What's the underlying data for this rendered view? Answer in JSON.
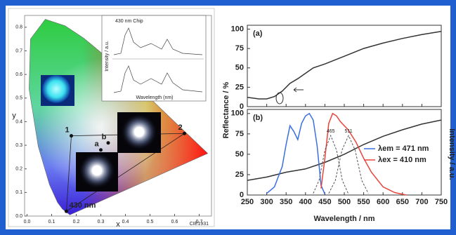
{
  "chart_data": [
    {
      "type": "chromaticity",
      "xlabel": "x",
      "ylabel": "y",
      "xlim": [
        -0.01,
        0.75
      ],
      "ylim": [
        0,
        0.85
      ],
      "xticks": [
        {
          "value": 0,
          "label": "0.0"
        },
        0.1,
        0.2,
        0.3,
        0.4,
        0.5,
        0.6,
        0.7
      ],
      "yticks": [
        {
          "value": 0,
          "label": "0.0"
        },
        0.1,
        0.2,
        0.3,
        0.4,
        0.5,
        0.6,
        0.7,
        0.8
      ],
      "points": [
        {
          "label": "1",
          "x": 0.18,
          "y": 0.34
        },
        {
          "label": "2",
          "x": 0.64,
          "y": 0.35
        },
        {
          "label": "a",
          "x": 0.3,
          "y": 0.28
        },
        {
          "label": "b",
          "x": 0.33,
          "y": 0.31
        },
        {
          "label": "430 nm",
          "x": 0.16,
          "y": 0.02
        }
      ],
      "footnote": "CIE1931",
      "inset": {
        "title": "430 nm Chip",
        "xlabel": "Wavelength (nm)",
        "ylabel": "Intensity / a.u."
      }
    },
    {
      "type": "line",
      "panel_label": "(a)",
      "ylabel": "Reflectance / %",
      "xlim": [
        250,
        750
      ],
      "ylim": [
        0,
        105
      ],
      "yticks": [
        0,
        25,
        50,
        75,
        100
      ],
      "series": [
        {
          "color": "#333333",
          "x": [
            250,
            280,
            300,
            320,
            340,
            360,
            380,
            400,
            420,
            450,
            500,
            550,
            600,
            650,
            700,
            750
          ],
          "values": [
            12,
            10,
            10,
            13,
            20,
            30,
            36,
            43,
            50,
            55,
            65,
            75,
            82,
            88,
            93,
            97
          ]
        }
      ]
    },
    {
      "type": "line",
      "panel_label": "(b)",
      "xlabel": "Wavelength / nm",
      "y2label": "Intensity / a.u.",
      "xlim": [
        250,
        750
      ],
      "ylim": [
        0,
        105
      ],
      "yticks": [
        0,
        25,
        50,
        75,
        100
      ],
      "xticks": [
        250,
        300,
        350,
        400,
        450,
        500,
        550,
        600,
        650,
        700,
        750
      ],
      "legend": "right",
      "series": [
        {
          "color": "#333333",
          "x": [
            250,
            300,
            350,
            400,
            450,
            500,
            550,
            600,
            650,
            700,
            750
          ],
          "values": [
            18,
            22,
            28,
            32,
            40,
            50,
            62,
            72,
            80,
            87,
            92
          ]
        },
        {
          "name": "λem = 471 nm",
          "color": "#3a6fe0",
          "x": [
            300,
            320,
            340,
            350,
            360,
            370,
            380,
            390,
            400,
            410,
            420,
            430,
            440,
            450
          ],
          "values": [
            2,
            10,
            35,
            62,
            85,
            78,
            68,
            88,
            97,
            100,
            92,
            60,
            12,
            1
          ]
        },
        {
          "name": "λex = 410 nm",
          "color": "#e8453c",
          "x": [
            440,
            450,
            460,
            470,
            480,
            490,
            510,
            530,
            550,
            570,
            600,
            630,
            660
          ],
          "values": [
            8,
            45,
            88,
            100,
            97,
            90,
            80,
            65,
            45,
            28,
            10,
            3,
            0
          ]
        },
        {
          "color": "#555555",
          "dashed": true,
          "peak_label": "465",
          "x": [
            420,
            435,
            450,
            465,
            480,
            495,
            510
          ],
          "values": [
            2,
            18,
            55,
            73,
            55,
            18,
            2
          ]
        },
        {
          "color": "#555555",
          "dashed": true,
          "peak_label": "511",
          "x": [
            460,
            477,
            494,
            511,
            528,
            545,
            562
          ],
          "values": [
            2,
            18,
            55,
            73,
            55,
            18,
            2
          ]
        }
      ]
    }
  ]
}
